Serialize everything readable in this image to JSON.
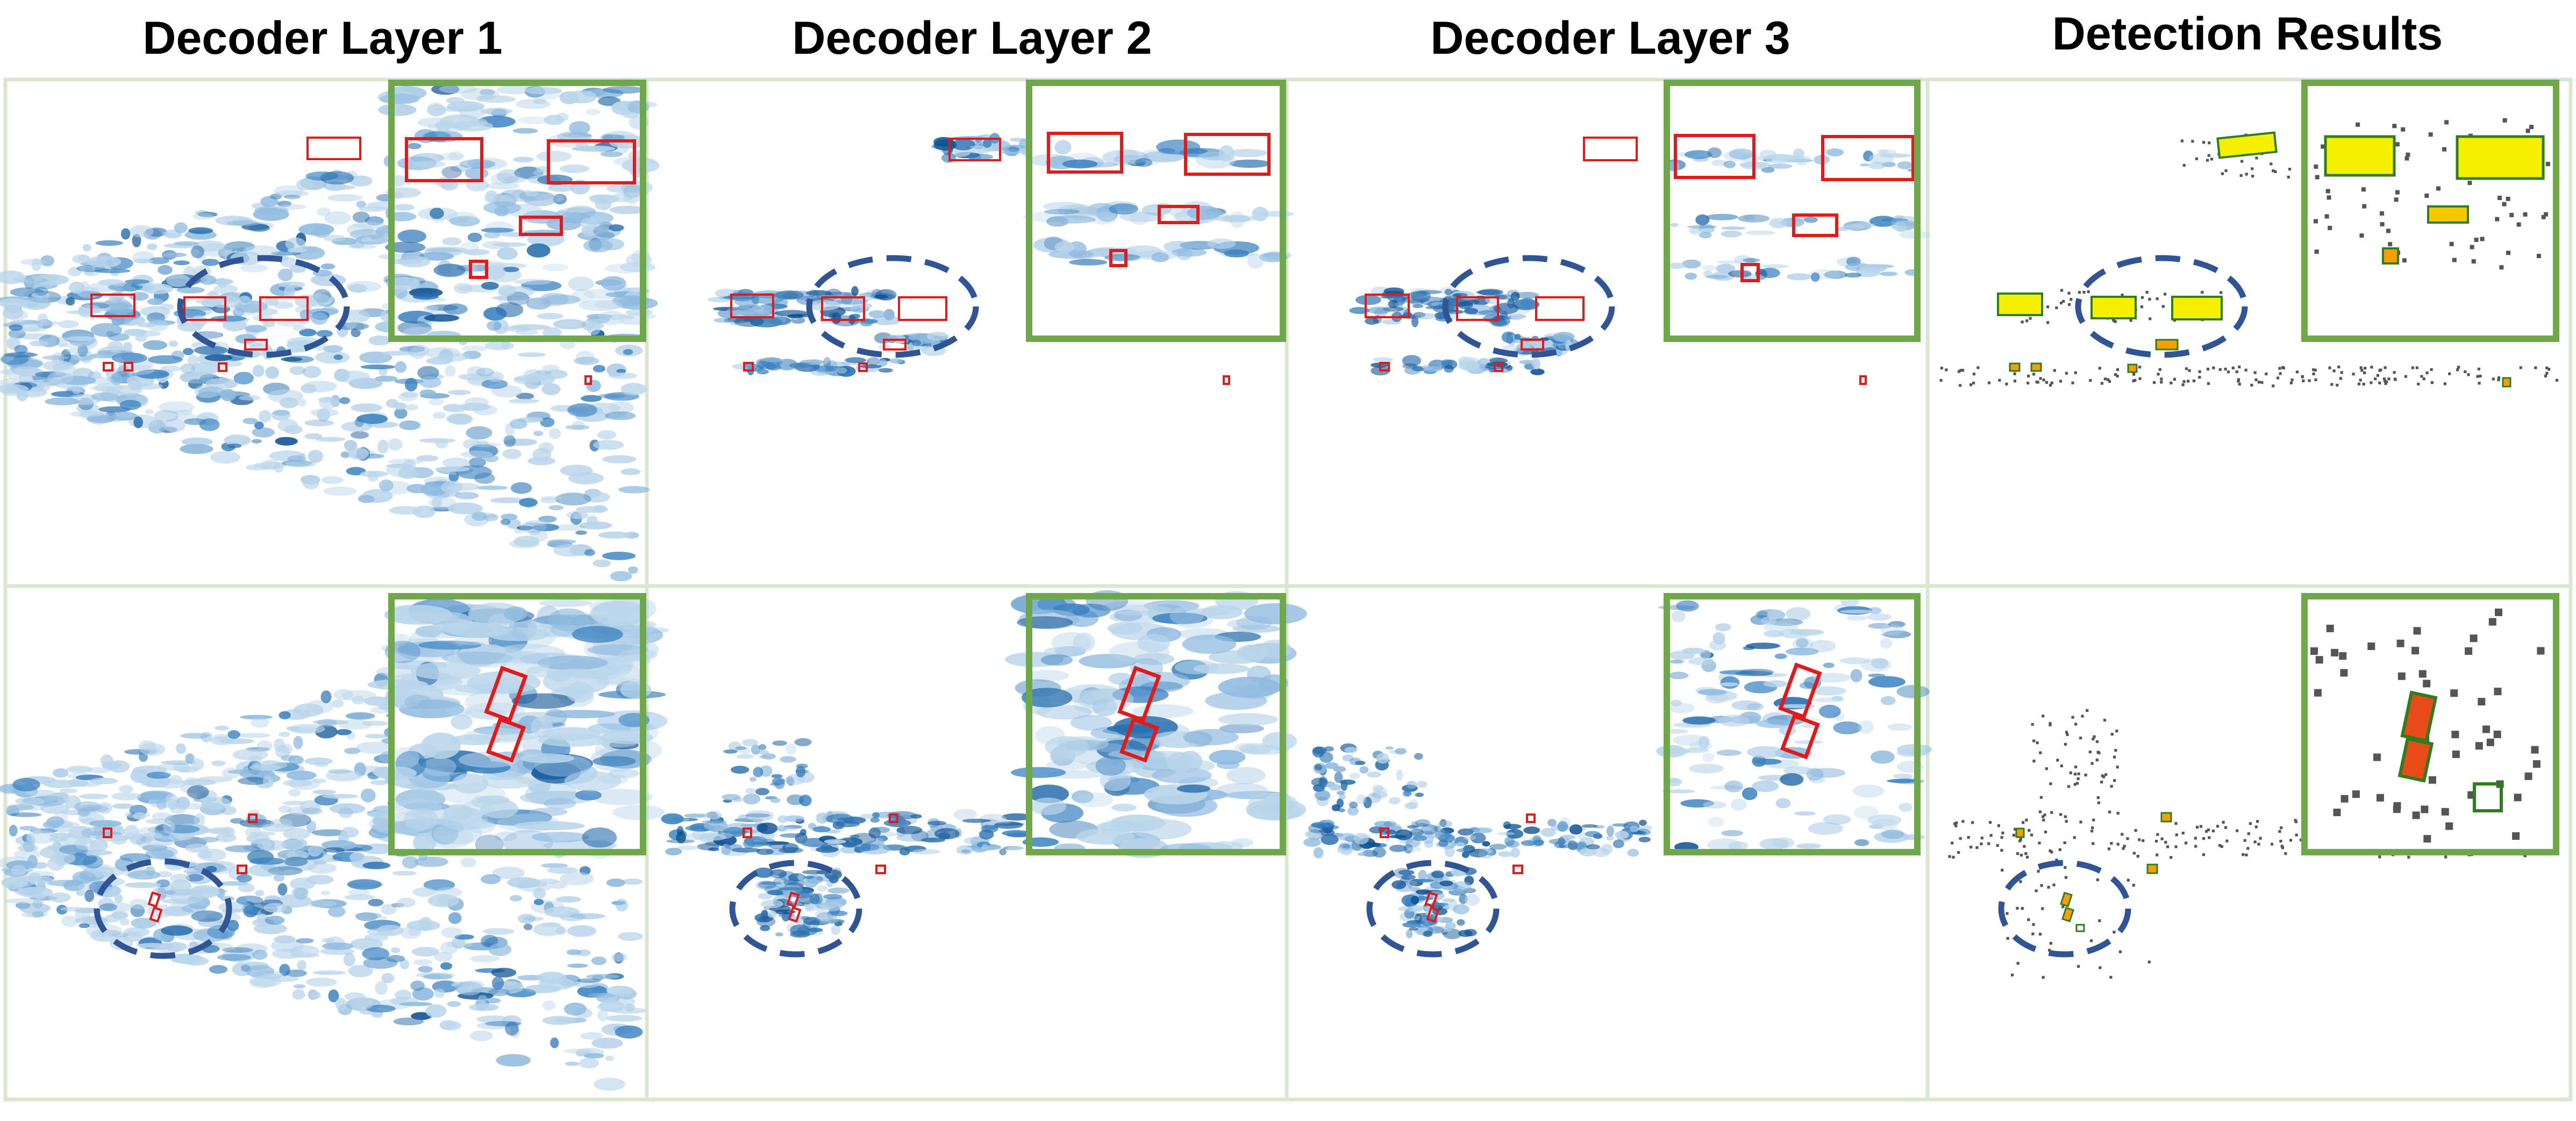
{
  "columns": [
    {
      "title": "Decoder Layer 1"
    },
    {
      "title": "Decoder Layer 2"
    },
    {
      "title": "Decoder Layer 3"
    },
    {
      "title": "Detection Results"
    }
  ],
  "colors": {
    "gaussian_dark": "#0b4f91",
    "gaussian_mid": "#3d84c2",
    "gaussian_light": "#b9d5ea",
    "box_red": "#e21a1a",
    "zoom_border": "#6fa84a",
    "panel_border": "#d8e8cf",
    "dashed_ellipse": "#2f5597",
    "point_gray": "#555555",
    "detect_yellow": "#f5f000",
    "detect_green": "#2e7d1f"
  }
}
